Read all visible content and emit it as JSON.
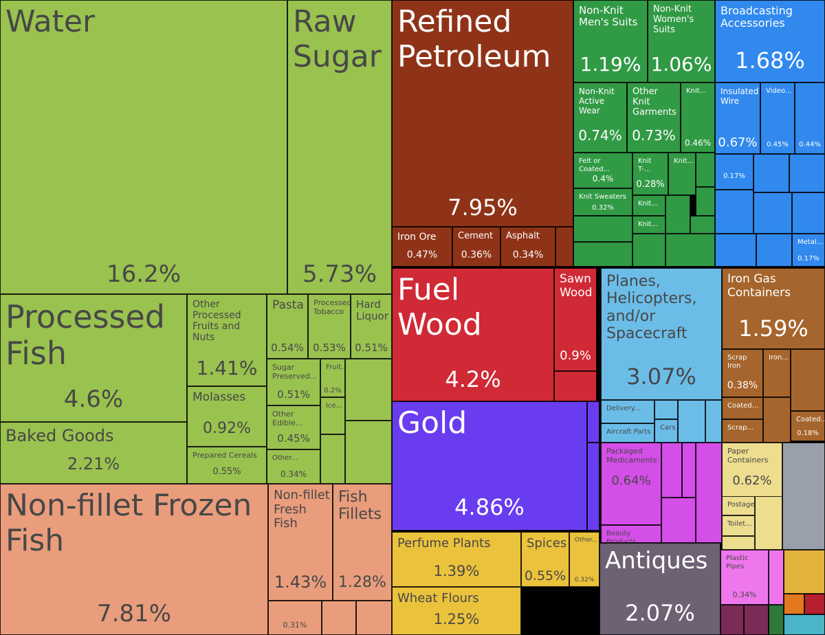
{
  "chart_data": {
    "type": "treemap",
    "unit": "%",
    "items": [
      {
        "label": "Water",
        "value": 16.2,
        "display": "16.2%"
      },
      {
        "label": "Raw Sugar",
        "value": 5.73,
        "display": "5.73%"
      },
      {
        "label": "Processed Fish",
        "value": 4.6,
        "display": "4.6%"
      },
      {
        "label": "Other Processed Fruits and Nuts",
        "value": 1.41,
        "display": "1.41%"
      },
      {
        "label": "Pasta",
        "value": 0.54,
        "display": "0.54%"
      },
      {
        "label": "Processed Tobacco",
        "value": 0.53,
        "display": "0.53%"
      },
      {
        "label": "Hard Liquor",
        "value": 0.51,
        "display": "0.51%"
      },
      {
        "label": "Sugar Preserved...",
        "value": 0.51,
        "display": "0.51%"
      },
      {
        "label": "Fruit...",
        "value": 0.2,
        "display": "0.2%"
      },
      {
        "label": "Ice..."
      },
      {
        "label": "Molasses",
        "value": 0.92,
        "display": "0.92%"
      },
      {
        "label": "Other Edible...",
        "value": 0.45,
        "display": "0.45%"
      },
      {
        "label": "Prepared Cereals",
        "value": 0.55,
        "display": "0.55%"
      },
      {
        "label": "Other...",
        "value": 0.34,
        "display": "0.34%"
      },
      {
        "label": "Baked Goods",
        "value": 2.21,
        "display": "2.21%"
      },
      {
        "label": "Non-fillet Frozen Fish",
        "value": 7.81,
        "display": "7.81%"
      },
      {
        "label": "Non-fillet Fresh Fish",
        "value": 1.43,
        "display": "1.43%"
      },
      {
        "label": "Fish Fillets",
        "value": 1.28,
        "display": "1.28%"
      },
      {
        "value": 0.31,
        "display": "0.31%"
      },
      {
        "label": "Refined Petroleum",
        "value": 7.95,
        "display": "7.95%"
      },
      {
        "label": "Iron Ore",
        "value": 0.47,
        "display": "0.47%"
      },
      {
        "label": "Cement",
        "value": 0.36,
        "display": "0.36%"
      },
      {
        "label": "Asphalt",
        "value": 0.34,
        "display": "0.34%"
      },
      {
        "label": "Fuel Wood",
        "value": 4.2,
        "display": "4.2%"
      },
      {
        "label": "Sawn Wood",
        "value": 0.9,
        "display": "0.9%"
      },
      {
        "label": "Gold",
        "value": 4.86,
        "display": "4.86%"
      },
      {
        "label": "Perfume Plants",
        "value": 1.39,
        "display": "1.39%"
      },
      {
        "label": "Spices",
        "value": 0.55,
        "display": "0.55%"
      },
      {
        "label": "Other...",
        "value": 0.32,
        "display": "0.32%"
      },
      {
        "label": "Wheat Flours",
        "value": 1.25,
        "display": "1.25%"
      },
      {
        "label": "Non-Knit Men's Suits",
        "value": 1.19,
        "display": "1.19%"
      },
      {
        "label": "Non-Knit Women's Suits",
        "value": 1.06,
        "display": "1.06%"
      },
      {
        "label": "Non-Knit Active Wear",
        "value": 0.74,
        "display": "0.74%"
      },
      {
        "label": "Other Knit Garments",
        "value": 0.73,
        "display": "0.73%"
      },
      {
        "label": "Knit...",
        "value": 0.46,
        "display": "0.46%"
      },
      {
        "label": "Felt or Coated...",
        "value": 0.4,
        "display": "0.4%"
      },
      {
        "label": "Knit T-...",
        "value": 0.28,
        "display": "0.28%"
      },
      {
        "label": "Knit..."
      },
      {
        "label": "Knit Sweaters",
        "value": 0.32,
        "display": "0.32%"
      },
      {
        "label": "Knit..."
      },
      {
        "label": "Knit..."
      },
      {
        "label": "Broadcasting Accessories",
        "value": 1.68,
        "display": "1.68%"
      },
      {
        "label": "Insulated Wire",
        "value": 0.67,
        "display": "0.67%"
      },
      {
        "label": "Video...",
        "value": 0.45,
        "display": "0.45%"
      },
      {
        "value": 0.44,
        "display": "0.44%"
      },
      {
        "value": 0.17,
        "display": "0.17%"
      },
      {
        "label": "Metal...",
        "value": 0.17,
        "display": "0.17%"
      },
      {
        "label": "Planes, Helicopters, and/or Spacecraft",
        "value": 3.07,
        "display": "3.07%"
      },
      {
        "label": "Delivery..."
      },
      {
        "label": "Aircraft Parts"
      },
      {
        "label": "Cars"
      },
      {
        "label": "Iron Gas Containers",
        "value": 1.59,
        "display": "1.59%"
      },
      {
        "label": "Scrap Iron",
        "value": 0.38,
        "display": "0.38%"
      },
      {
        "label": "Iron..."
      },
      {
        "label": "Coated..."
      },
      {
        "label": "Coated...",
        "value": 0.18,
        "display": "0.18%"
      },
      {
        "label": "Scrap..."
      },
      {
        "label": "Packaged Medicaments",
        "value": 0.64,
        "display": "0.64%"
      },
      {
        "label": "Beauty Products"
      },
      {
        "label": "Paper Containers",
        "value": 0.62,
        "display": "0.62%"
      },
      {
        "label": "Postage..."
      },
      {
        "label": "Toilet..."
      },
      {
        "label": "Antiques",
        "value": 2.07,
        "display": "2.07%"
      },
      {
        "label": "Plastic Pipes",
        "value": 0.34,
        "display": "0.34%"
      }
    ]
  },
  "colors": {
    "food": "#99c24f",
    "fish": "#e99d7c",
    "minerals": "#8f3318",
    "wood": "#cf2a35",
    "gold": "#6a3cf0",
    "vegetable": "#ebc23c",
    "textiles": "#319a45",
    "machines": "#3189ee",
    "transport": "#6bbde8",
    "metals": "#a5652d",
    "chemicals": "#d44ee8",
    "paper": "#eddd8f",
    "art": "#6e6174",
    "plastics": "#ef77ee",
    "gray": "#9aa0ab",
    "orange": "#e2791f",
    "amber": "#e3b43c",
    "darkred": "#b51f2e",
    "plum": "#7a2b56",
    "dgreen": "#2f7a3a",
    "cyan": "#4ab4c8"
  }
}
